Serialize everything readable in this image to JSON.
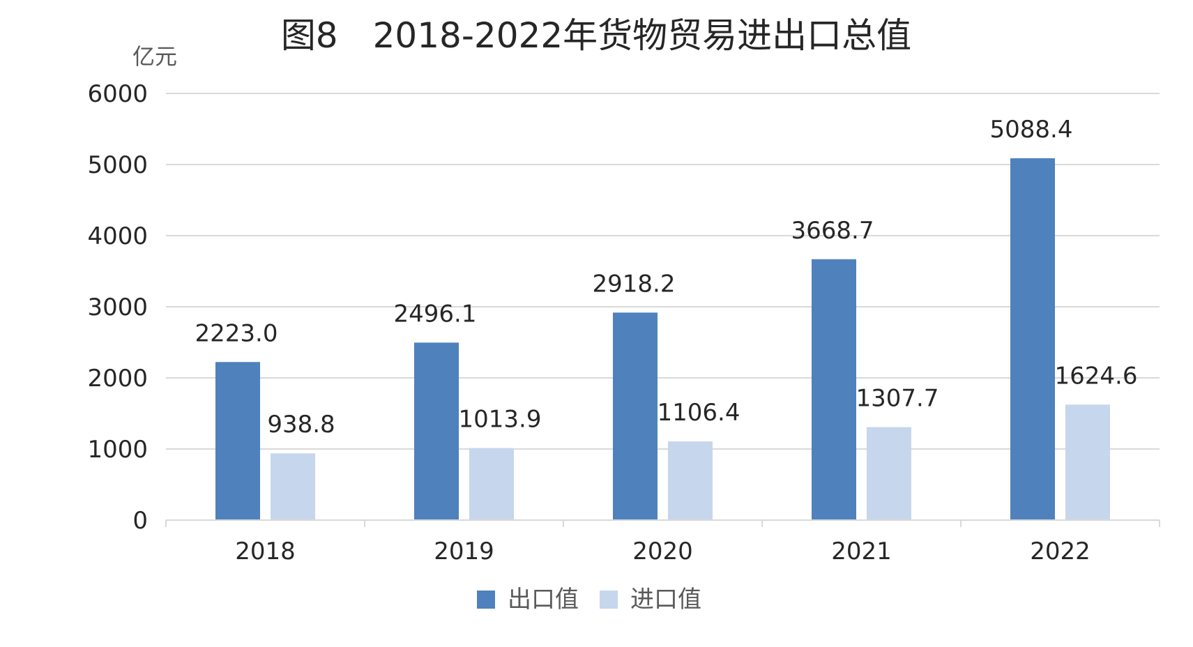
{
  "chart_data": {
    "type": "bar",
    "title": "图8　2018-2022年货物贸易进出口总值",
    "ylabel": "亿元",
    "xlabel": "",
    "ylim": [
      0,
      6000
    ],
    "yticks": [
      0,
      1000,
      2000,
      3000,
      4000,
      5000,
      6000
    ],
    "grid": true,
    "legend_position": "bottom-center",
    "categories": [
      "2018",
      "2019",
      "2020",
      "2021",
      "2022"
    ],
    "series": [
      {
        "name": "出口值",
        "color": "#4f81bd",
        "values": [
          2223.0,
          2496.1,
          2918.2,
          3668.7,
          5088.4
        ],
        "labels": [
          "2223.0",
          "2496.1",
          "2918.2",
          "3668.7",
          "5088.4"
        ]
      },
      {
        "name": "进口值",
        "color": "#c6d6ec",
        "values": [
          938.8,
          1013.9,
          1106.4,
          1307.7,
          1624.6
        ],
        "labels": [
          "938.8",
          "1013.9",
          "1106.4",
          "1307.7",
          "1624.6"
        ]
      }
    ]
  },
  "colors": {
    "gridline": "#d9d9d9",
    "axis": "#d9d9d9",
    "text": "#262626"
  }
}
